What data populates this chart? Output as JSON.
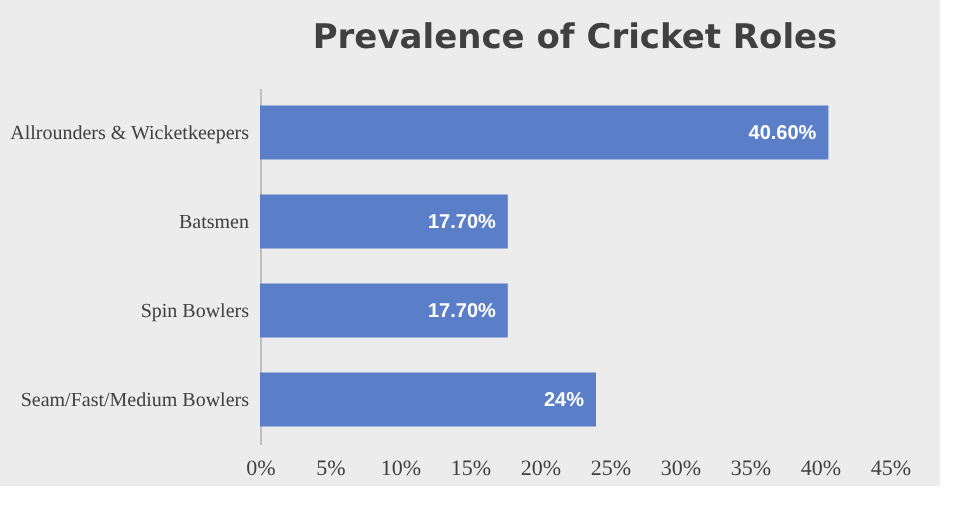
{
  "chart_data": {
    "type": "bar",
    "orientation": "horizontal",
    "title": "Prevalence of Cricket Roles",
    "categories": [
      "Allrounders & Wicketkeepers",
      "Batsmen",
      "Spin Bowlers",
      "Seam/Fast/Medium Bowlers"
    ],
    "values": [
      40.6,
      17.7,
      17.7,
      24
    ],
    "value_labels": [
      "40.60%",
      "17.70%",
      "17.70%",
      "24%"
    ],
    "color": "#5a7ec8",
    "xlim": [
      0,
      45
    ],
    "xticks": [
      {
        "value": 0,
        "label": "0%"
      },
      {
        "value": 5,
        "label": "5%"
      },
      {
        "value": 10,
        "label": "10%"
      },
      {
        "value": 15,
        "label": "15%"
      },
      {
        "value": 20,
        "label": "20%"
      },
      {
        "value": 25,
        "label": "25%"
      },
      {
        "value": 30,
        "label": "30%"
      },
      {
        "value": 35,
        "label": "35%"
      },
      {
        "value": 40,
        "label": "40%"
      },
      {
        "value": 45,
        "label": "45%"
      }
    ],
    "grid": false
  }
}
